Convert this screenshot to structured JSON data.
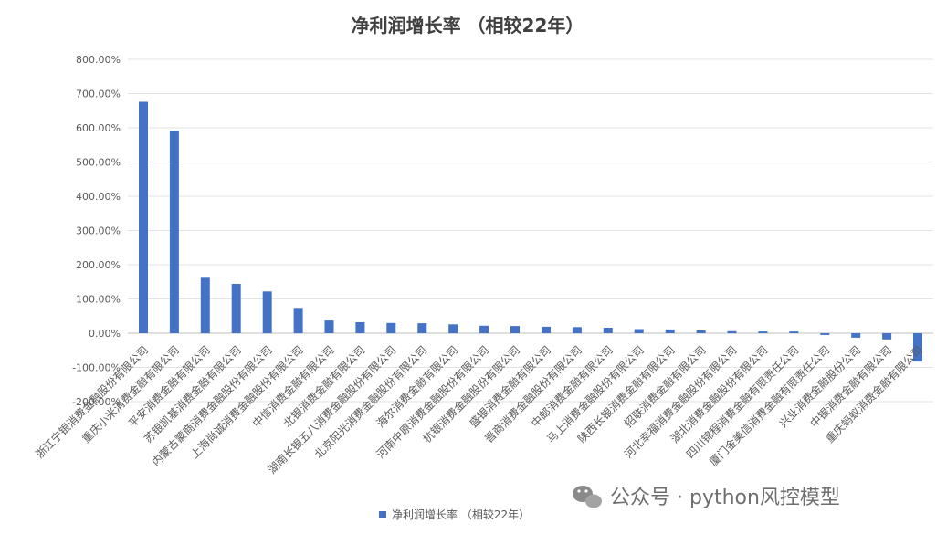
{
  "chart_data": {
    "type": "bar",
    "title": "净利润增长率 （相较22年）",
    "xlabel": "",
    "ylabel": "",
    "ylim": [
      -200,
      800
    ],
    "yticks": [
      "800.00%",
      "700.00%",
      "600.00%",
      "500.00%",
      "400.00%",
      "300.00%",
      "200.00%",
      "100.00%",
      "0.00%",
      "-100.00%",
      "-200.00%"
    ],
    "grid": true,
    "legend_position": "bottom",
    "bar_color": "#4472c4",
    "categories": [
      "浙江宁银消费金融股份有限公司",
      "重庆小米消费金融有限公司",
      "平安消费金融有限公司",
      "苏银凯基消费金融有限公司",
      "内蒙古蒙商消费金融股份有限公司",
      "上海尚诚消费金融股份有限公司",
      "中信消费金融有限公司",
      "北银消费金融有限公司",
      "湖南长银五八消费金融股份有限公司",
      "北京阳光消费金融股份有限公司",
      "海尔消费金融有限公司",
      "河南中原消费金融股份有限公司",
      "杭银消费金融股份有限公司",
      "盛银消费金融有限公司",
      "晋商消费金融股份有限公司",
      "中邮消费金融有限公司",
      "马上消费金融股份有限公司",
      "陕西长银消费金融有限公司",
      "招联消费金融有限公司",
      "河北幸福消费金融股份有限公司",
      "湖北消费金融股份有限公司",
      "四川锦程消费金融有限责任公司",
      "厦门金美信消费金融有限责任公司",
      "兴业消费金融股份公司",
      "中银消费金融有限公司",
      "重庆蚂蚁消费金融有限公司"
    ],
    "series": [
      {
        "name": "净利润增长率 （相较22年）",
        "values": [
          676,
          591,
          162,
          144,
          122,
          74,
          37,
          32,
          30,
          29,
          26,
          22,
          21,
          19,
          18,
          16,
          12,
          11,
          8,
          6,
          5,
          5,
          -5,
          -13,
          -18,
          -83
        ]
      }
    ]
  },
  "watermark": {
    "text": "公众号 · python风控模型",
    "icon": "wechat-icon"
  }
}
